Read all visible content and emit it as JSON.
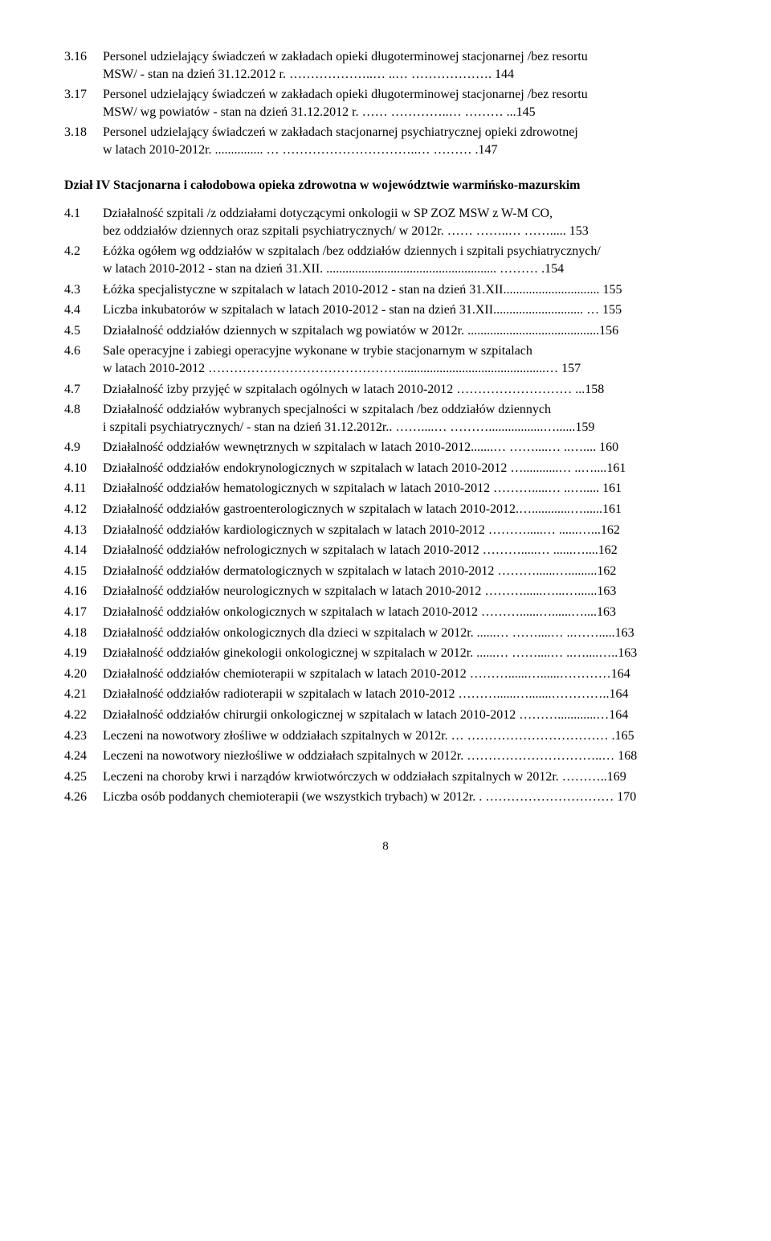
{
  "entries_top": [
    {
      "num": "3.16",
      "lines": [
        "Personel udzielający świadczeń w zakładach opieki długoterminowej stacjonarnej /bez resortu",
        "MSW/ - stan na dzień 31.12.2012 r. ………………..… ..… ………………. 144"
      ]
    },
    {
      "num": "3.17",
      "lines": [
        "Personel udzielający świadczeń w zakładach opieki długoterminowej stacjonarnej /bez resortu",
        "MSW/ wg powiatów - stan na dzień 31.12.2012 r. …… …………..… ……… ...145"
      ]
    },
    {
      "num": "3.18",
      "lines": [
        "Personel udzielający świadczeń w zakładach stacjonarnej psychiatrycznej opieki zdrowotnej",
        "w latach 2010-2012r. ............... … …………………………..… ……… .147"
      ]
    }
  ],
  "section_title": "Dział IV  Stacjonarna i całodobowa opieka zdrowotna w województwie warmińsko-mazurskim",
  "entries_main": [
    {
      "num": "4.1",
      "lines": [
        "Działalność szpitali /z oddziałami dotyczącymi onkologii w SP ZOZ MSW z W-M CO,",
        "bez oddziałów dziennych oraz szpitali psychiatrycznych/ w 2012r. …… ……..… …….....  153"
      ]
    },
    {
      "num": "4.2",
      "lines": [
        "Łóżka ogółem wg oddziałów w szpitalach /bez oddziałów dziennych i szpitali psychiatrycznych/",
        "w latach 2010-2012 - stan na dzień 31.XII. ..................................................... ……… .154"
      ]
    },
    {
      "num": "4.3",
      "lines": [
        "Łóżka specjalistyczne w szpitalach w latach 2010-2012 - stan na dzień 31.XII.............................. 155"
      ]
    },
    {
      "num": "4.4",
      "lines": [
        "Liczba inkubatorów w szpitalach w latach 2010-2012 - stan na dzień 31.XII............................ … 155"
      ]
    },
    {
      "num": "4.5",
      "lines": [
        "Działalność oddziałów dziennych w szpitalach wg powiatów w 2012r. .........................................156"
      ]
    },
    {
      "num": "4.6",
      "lines": [
        "Sale operacyjne i zabiegi operacyjne wykonane w trybie stacjonarnym w szpitalach",
        "w latach 2010-2012 ……………………………………….............................................… 157"
      ]
    },
    {
      "num": "4.7",
      "lines": [
        "Działalność izby przyjęć w szpitalach ogólnych w latach 2010-2012 ……………………… ...158"
      ]
    },
    {
      "num": "4.8",
      "lines": [
        "Działalność oddziałów wybranych specjalności w szpitalach /bez oddziałów dziennych",
        "i szpitali psychiatrycznych/ - stan na dzień 31.12.2012r.. ……....… ……….................…......159"
      ]
    },
    {
      "num": "4.9",
      "lines": [
        "Działalność oddziałów wewnętrznych w szpitalach w latach 2010-2012.......… ……....… ..….... 160"
      ]
    },
    {
      "num": "4.10",
      "lines": [
        "Działalność oddziałów endokrynologicznych w szpitalach w latach 2010-2012 …...........… ..…....161"
      ]
    },
    {
      "num": "4.11",
      "lines": [
        "Działalność oddziałów hematologicznych w szpitalach w latach 2010-2012 ……….....… ..….....  161"
      ]
    },
    {
      "num": "4.12",
      "lines": [
        "Działalność oddziałów gastroenterologicznych w szpitalach w latach 2010-2012.…............…......161"
      ]
    },
    {
      "num": "4.13",
      "lines": [
        "Działalność oddziałów kardiologicznych w szpitalach w latach 2010-2012 ……….....… ......…...162"
      ]
    },
    {
      "num": "4.14",
      "lines": [
        "Działalność oddziałów nefrologicznych w szpitalach w latach 2010-2012 ……….....… ......…....162"
      ]
    },
    {
      "num": "4.15",
      "lines": [
        "Działalność oddziałów dermatologicznych w szpitalach w latach 2010-2012 ………......….........162"
      ]
    },
    {
      "num": "4.16",
      "lines": [
        "Działalność oddziałów neurologicznych w szpitalach w latach 2010-2012 ………......…...…......163"
      ]
    },
    {
      "num": "4.17",
      "lines": [
        "Działalność oddziałów onkologicznych w szpitalach w latach 2010-2012 ………......…......…....163"
      ]
    },
    {
      "num": "4.18",
      "lines": [
        "Działalność oddziałów onkologicznych dla dzieci w szpitalach w 2012r. ......… ……....… ..…….....163"
      ]
    },
    {
      "num": "4.19",
      "lines": [
        "Działalność oddziałów ginekologii onkologicznej w szpitalach w 2012r. ......… ……....… ..…....…..163"
      ]
    },
    {
      "num": "4.20",
      "lines": [
        "Działalność oddziałów chemioterapii w szpitalach w latach 2010-2012 ………......…......…………164"
      ]
    },
    {
      "num": "4.21",
      "lines": [
        "Działalność oddziałów radioterapii w szpitalach w latach 2010-2012 ………......….......…………..164"
      ]
    },
    {
      "num": "4.22",
      "lines": [
        "Działalność oddziałów chirurgii onkologicznej w szpitalach w latach 2010-2012 ………............…164"
      ]
    },
    {
      "num": "4.23",
      "lines": [
        "Leczeni na nowotwory złośliwe w oddziałach szpitalnych w 2012r. … …………………………… .165"
      ]
    },
    {
      "num": "4.24",
      "lines": [
        "Leczeni na nowotwory niezłośliwe w oddziałach szpitalnych w 2012r.  …………………………..… 168"
      ]
    },
    {
      "num": "4.25",
      "lines": [
        "Leczeni na choroby krwi i narządów krwiotwórczych w oddziałach szpitalnych w 2012r. ………..169"
      ]
    },
    {
      "num": "4.26",
      "lines": [
        "Liczba osób poddanych chemioterapii (we wszystkich trybach) w 2012r. . ………………………… 170"
      ]
    }
  ],
  "page_number": "8"
}
